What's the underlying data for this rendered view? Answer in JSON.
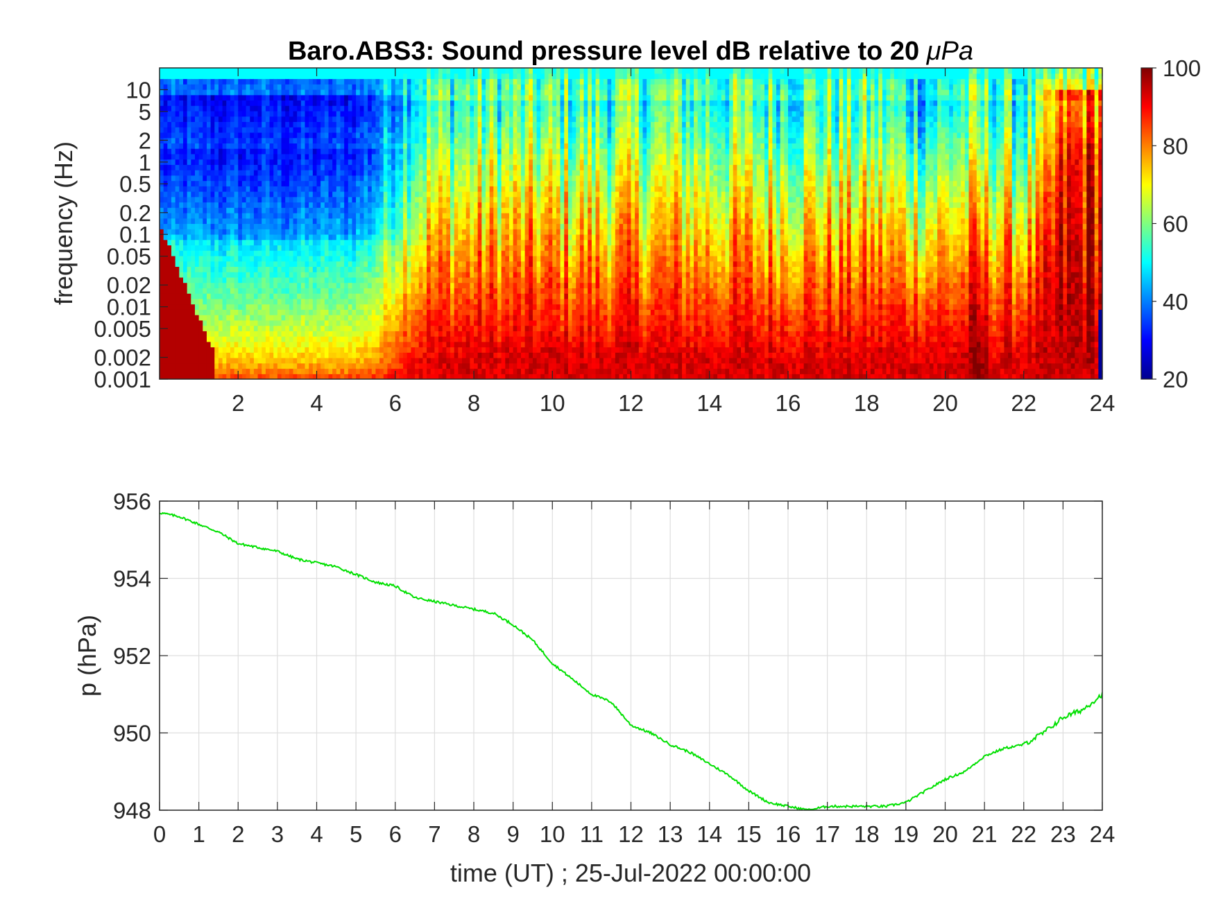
{
  "chart_data": [
    {
      "type": "heatmap",
      "title": "Baro.ABS3: Sound pressure level dB relative to 20 μPa",
      "title_main": "Baro.ABS3: Sound pressure level dB relative to 20 ",
      "title_unit": "μPa",
      "ylabel": "frequency (Hz)",
      "xlabel": "",
      "xlim": [
        0,
        24
      ],
      "x_ticks": [
        2,
        4,
        6,
        8,
        10,
        12,
        14,
        16,
        18,
        20,
        22,
        24
      ],
      "x_tick_labels": [
        "2",
        "4",
        "6",
        "8",
        "10",
        "12",
        "14",
        "16",
        "18",
        "20",
        "22",
        "24"
      ],
      "y_scale": "log",
      "ylim": [
        0.001,
        20
      ],
      "y_ticks": [
        0.001,
        0.002,
        0.005,
        0.01,
        0.02,
        0.05,
        0.1,
        0.2,
        0.5,
        1,
        2,
        5,
        10
      ],
      "y_tick_labels": [
        "0.001",
        "0.002",
        "0.005",
        "0.01",
        "0.02",
        "0.05",
        "0.1",
        "0.2",
        "0.5",
        "1",
        "2",
        "5",
        "10"
      ],
      "colormap": "jet",
      "colorbar": {
        "range": [
          20,
          100
        ],
        "ticks": [
          20,
          40,
          60,
          80,
          100
        ],
        "tick_labels": [
          "20",
          "40",
          "60",
          "80",
          "100"
        ]
      },
      "features": [
        {
          "time_range": [
            0,
            5.8
          ],
          "description_level_low_freq_db": 85,
          "level_high_freq_db": 35
        },
        {
          "time_range": [
            5.8,
            24
          ],
          "level_low_freq_db": 90,
          "level_high_freq_db": 50
        },
        {
          "time_range": [
            22.6,
            24
          ],
          "level_mid_freq_db": 90
        }
      ]
    },
    {
      "type": "line",
      "title": "",
      "xlabel": "time (UT) ; 25-Jul-2022 00:00:00",
      "ylabel": "p (hPa)",
      "xlim": [
        0,
        24
      ],
      "ylim": [
        948,
        956
      ],
      "x_ticks": [
        0,
        1,
        2,
        3,
        4,
        5,
        6,
        7,
        8,
        9,
        10,
        11,
        12,
        13,
        14,
        15,
        16,
        17,
        18,
        19,
        20,
        21,
        22,
        23,
        24
      ],
      "x_tick_labels": [
        "0",
        "1",
        "2",
        "3",
        "4",
        "5",
        "6",
        "7",
        "8",
        "9",
        "10",
        "11",
        "12",
        "13",
        "14",
        "15",
        "16",
        "17",
        "18",
        "19",
        "20",
        "21",
        "22",
        "23",
        "24"
      ],
      "y_ticks": [
        948,
        950,
        952,
        954,
        956
      ],
      "y_tick_labels": [
        "948",
        "950",
        "952",
        "954",
        "956"
      ],
      "grid": true,
      "line_color": "#00e000",
      "series": [
        {
          "x": [
            0,
            0.5,
            1,
            1.5,
            2,
            2.5,
            3,
            3.5,
            4,
            4.5,
            5,
            5.5,
            6,
            6.5,
            7,
            7.5,
            8,
            8.5,
            9,
            9.5,
            10,
            10.5,
            11,
            11.5,
            12,
            12.5,
            13,
            13.5,
            14,
            14.5,
            15,
            15.5,
            16,
            16.5,
            17,
            17.5,
            18,
            18.5,
            19,
            19.5,
            20,
            20.5,
            21,
            21.5,
            22,
            22.5,
            23,
            23.5,
            24
          ],
          "y": [
            955.7,
            955.6,
            955.4,
            955.2,
            954.9,
            954.8,
            954.7,
            954.5,
            954.4,
            954.3,
            954.1,
            953.9,
            953.8,
            953.5,
            953.4,
            953.3,
            953.2,
            953.1,
            952.8,
            952.4,
            951.8,
            951.4,
            951.0,
            950.8,
            950.2,
            950.0,
            949.7,
            949.5,
            949.2,
            948.9,
            948.5,
            948.2,
            948.1,
            948.0,
            948.1,
            948.1,
            948.1,
            948.1,
            948.2,
            948.5,
            948.8,
            949.0,
            949.4,
            949.6,
            949.7,
            950.0,
            950.4,
            950.6,
            951.0
          ]
        }
      ]
    }
  ]
}
